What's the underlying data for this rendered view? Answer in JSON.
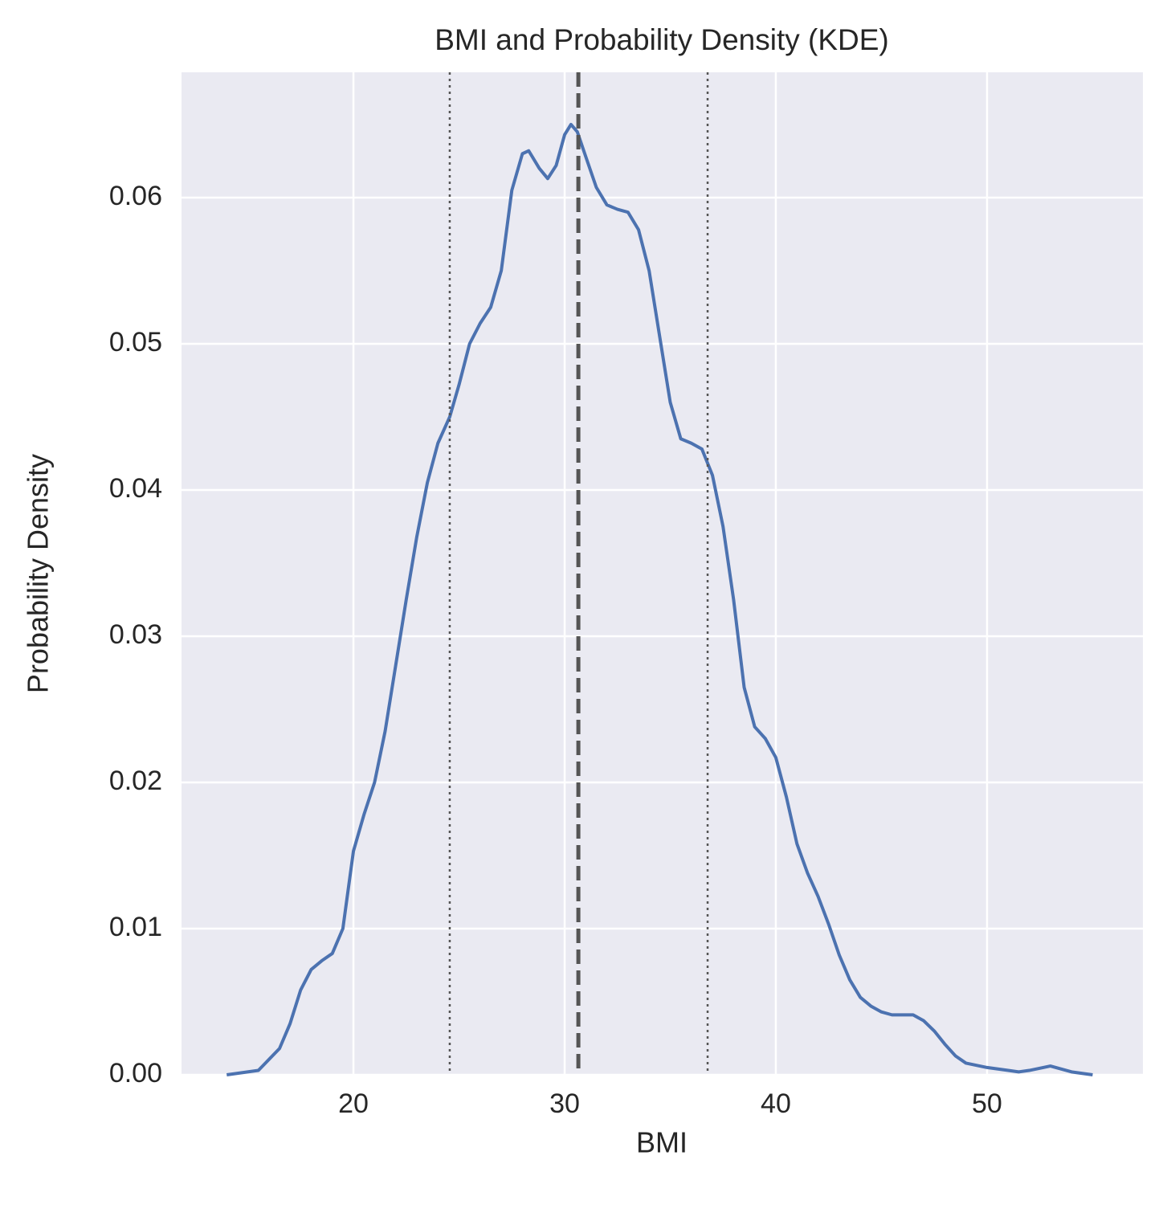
{
  "chart_data": {
    "type": "line",
    "title": "BMI and Probability Density (KDE)",
    "x_label": "BMI",
    "y_label": "Probability Density",
    "xlim": [
      11.86,
      57.38
    ],
    "ylim": [
      0,
      0.06857
    ],
    "xticks": [
      20,
      30,
      40,
      50
    ],
    "yticks": [
      {
        "value": 0,
        "label": "0.00"
      },
      0.01,
      0.02,
      0.03,
      0.04,
      0.05,
      0.06
    ],
    "grid": true,
    "background": "#eaeaf2",
    "series": [
      {
        "color": "#4c72b0",
        "x": [
          14,
          15.5,
          16.5,
          17,
          17.5,
          18,
          18.5,
          19,
          19.5,
          20,
          20.5,
          21,
          21.5,
          22,
          22.5,
          23,
          23.5,
          24,
          24.56,
          25,
          25.5,
          26,
          26.5,
          27,
          27.5,
          28,
          28.3,
          28.8,
          29.2,
          29.6,
          30,
          30.3,
          30.6,
          31,
          31.5,
          32,
          32.5,
          33,
          33.5,
          34,
          34.5,
          35,
          35.5,
          36,
          36.5,
          37,
          37.5,
          38,
          38.5,
          39,
          39.5,
          40,
          40.5,
          41,
          41.5,
          42,
          42.5,
          43,
          43.5,
          44,
          44.5,
          45,
          45.5,
          46,
          46.5,
          47,
          47.5,
          48,
          48.5,
          49,
          50,
          51,
          51.5,
          52,
          53,
          54,
          55
        ],
        "values": [
          0,
          0.0003,
          0.0018,
          0.0035,
          0.0058,
          0.0072,
          0.0078,
          0.0083,
          0.01,
          0.0153,
          0.0178,
          0.02,
          0.0235,
          0.028,
          0.0325,
          0.0368,
          0.0405,
          0.0432,
          0.045,
          0.0472,
          0.05,
          0.0514,
          0.0525,
          0.055,
          0.0605,
          0.063,
          0.0632,
          0.062,
          0.0613,
          0.0622,
          0.0643,
          0.065,
          0.0645,
          0.0628,
          0.0607,
          0.0595,
          0.0592,
          0.059,
          0.0578,
          0.055,
          0.0505,
          0.046,
          0.0435,
          0.0432,
          0.0428,
          0.041,
          0.0375,
          0.0325,
          0.0265,
          0.0238,
          0.023,
          0.0217,
          0.019,
          0.0158,
          0.0138,
          0.0122,
          0.0103,
          0.0082,
          0.0065,
          0.0053,
          0.0047,
          0.0043,
          0.0041,
          0.0041,
          0.0041,
          0.0037,
          0.003,
          0.0021,
          0.0013,
          0.0008,
          0.0005,
          0.0003,
          0.0002,
          0.0003,
          0.0006,
          0.0002,
          0
        ]
      }
    ],
    "vlines": [
      {
        "x": 24.56,
        "style": "dotted",
        "color": "#555555"
      },
      {
        "x": 30.65,
        "style": "dashed",
        "color": "#555555"
      },
      {
        "x": 36.77,
        "style": "dotted",
        "color": "#555555"
      }
    ]
  }
}
